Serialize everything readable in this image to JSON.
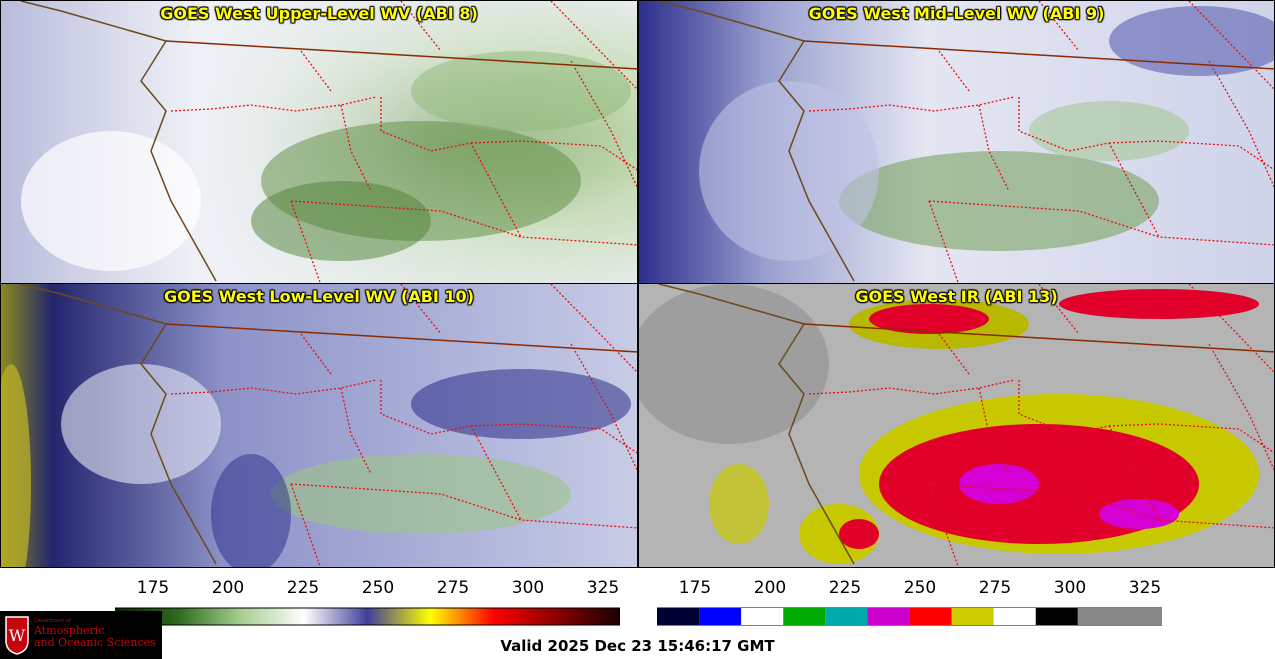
{
  "panels": [
    {
      "title": "GOES West Upper-Level WV (ABI 8)",
      "palette": "wv"
    },
    {
      "title": "GOES West Mid-Level WV (ABI 9)",
      "palette": "wv"
    },
    {
      "title": "GOES West Low-Level WV (ABI 10)",
      "palette": "wv"
    },
    {
      "title": "GOES West IR (ABI 13)",
      "palette": "ir"
    }
  ],
  "colorbars": {
    "wv": {
      "ticks": [
        "175",
        "200",
        "225",
        "250",
        "275",
        "300",
        "325"
      ],
      "colors": [
        "#0a1f05",
        "#2e6b1c",
        "#a7cf90",
        "#ffffff",
        "#3f3f9a",
        "#ffff00",
        "#ff0000",
        "#8a0000",
        "#1a0000"
      ]
    },
    "ir": {
      "ticks": [
        "175",
        "200",
        "225",
        "250",
        "275",
        "300",
        "325"
      ],
      "colors": [
        "#000033",
        "#0000ff",
        "#ffffff",
        "#00aa00",
        "#00aaaa",
        "#cc00cc",
        "#ff0000",
        "#cccc00",
        "#ffffff",
        "#000000"
      ]
    }
  },
  "logo": {
    "line1": "Department of",
    "line2": "Atmospheric",
    "line3": "and Oceanic Sciences",
    "crest_letter": "W"
  },
  "valid_time": "Valid 2025 Dec 23 15:46:17 GMT"
}
